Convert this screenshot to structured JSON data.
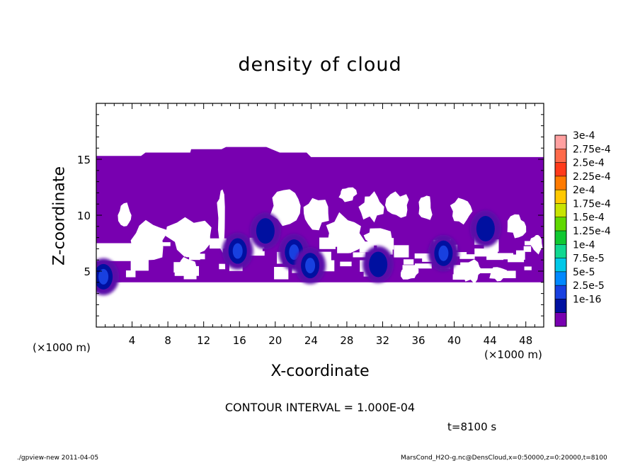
{
  "chart_data": {
    "type": "heatmap",
    "title": "density of cloud",
    "xlabel": "X-coordinate",
    "ylabel": "Z-coordinate",
    "x_unit_label": "(×1000 m)",
    "xlim": [
      0,
      50
    ],
    "ylim": [
      0,
      20
    ],
    "x_ticks": [
      4,
      8,
      12,
      16,
      20,
      24,
      28,
      32,
      36,
      40,
      44,
      48
    ],
    "y_ticks": [
      5,
      10,
      15
    ],
    "contour_interval_text": "CONTOUR INTERVAL = 1.000E-04",
    "time_text": "t=8100 s",
    "colorbar": {
      "labels": [
        "3e-4",
        "2.75e-4",
        "2.5e-4",
        "2.25e-4",
        "2e-4",
        "1.75e-4",
        "1.5e-4",
        "1.25e-4",
        "1e-4",
        "7.5e-5",
        "5e-5",
        "2.5e-5",
        "1e-16"
      ],
      "colors": [
        "#ffa0a0",
        "#ff6a4a",
        "#ff3a1a",
        "#ff7a00",
        "#ffc800",
        "#c8e400",
        "#60d800",
        "#10c830",
        "#10d890",
        "#00c8e8",
        "#0088ff",
        "#1840e0",
        "#0010a0",
        "#7800b0"
      ]
    },
    "cloud_region": {
      "value_range": "1e-16 to ~7.5e-5",
      "z_bottom_km": 4,
      "z_top_km": [
        [
          0,
          15.3
        ],
        [
          5,
          15.3
        ],
        [
          5.5,
          15.6
        ],
        [
          10.5,
          15.6
        ],
        [
          10.6,
          15.9
        ],
        [
          14,
          15.9
        ],
        [
          14.5,
          16.1
        ],
        [
          19,
          16.1
        ],
        [
          20.5,
          15.6
        ],
        [
          23.5,
          15.6
        ],
        [
          24,
          15.2
        ],
        [
          50,
          15.2
        ]
      ],
      "maxima": [
        {
          "x": 15.8,
          "z": 6.8,
          "level": "5e-5"
        },
        {
          "x": 18.9,
          "z": 8.6,
          "level": "2.5e-5"
        },
        {
          "x": 22.1,
          "z": 6.7,
          "level": "5e-5"
        },
        {
          "x": 23.9,
          "z": 5.5,
          "level": "5e-5"
        },
        {
          "x": 31.5,
          "z": 5.6,
          "level": "2.5e-5"
        },
        {
          "x": 38.8,
          "z": 6.6,
          "level": "5e-5"
        },
        {
          "x": 43.5,
          "z": 8.8,
          "level": "2.5e-5"
        },
        {
          "x": 0.8,
          "z": 4.5,
          "level": "5e-5"
        }
      ]
    }
  },
  "footer": {
    "left": "./gpview-new   2011-04-05",
    "right": "MarsCond_H2O-g.nc@DensCloud,x=0:50000,z=0:20000,t=8100"
  }
}
